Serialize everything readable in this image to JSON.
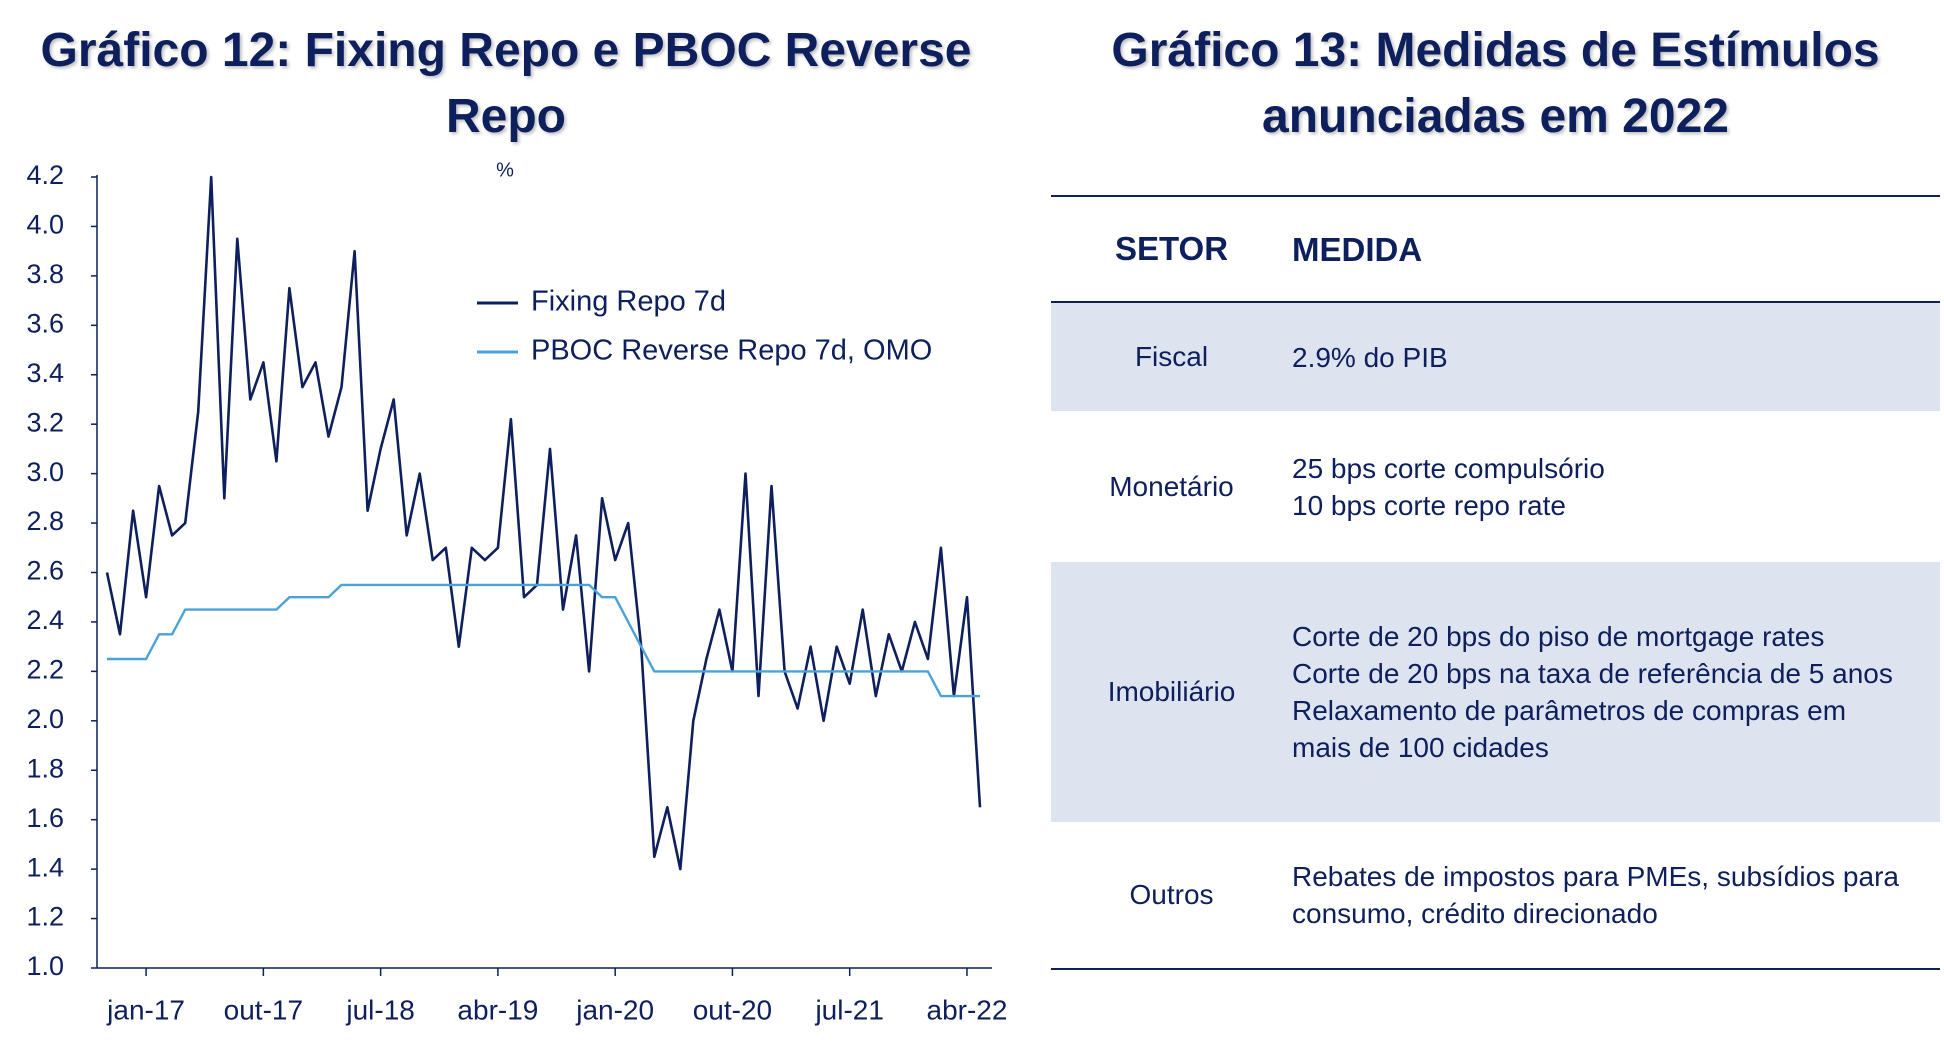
{
  "chart_data": {
    "type": "line",
    "title": "Gráfico 12: Fixing Repo e PBOC Reverse Repo",
    "subtitle": "%",
    "categories": [
      null,
      null,
      null,
      "jan-17",
      null,
      null,
      null,
      null,
      null,
      null,
      null,
      null,
      "out-17",
      null,
      null,
      null,
      null,
      null,
      null,
      null,
      null,
      "jul-18",
      null,
      null,
      null,
      null,
      null,
      null,
      null,
      null,
      "abr-19",
      null,
      null,
      null,
      null,
      null,
      null,
      null,
      null,
      "jan-20",
      null,
      null,
      null,
      null,
      null,
      null,
      null,
      null,
      "out-20",
      null,
      null,
      null,
      null,
      null,
      null,
      null,
      null,
      "jul-21",
      null,
      null,
      null,
      null,
      null,
      null,
      null,
      null,
      "abr-22",
      null
    ],
    "series": [
      {
        "name": "Fixing Repo 7d",
        "color": "#0d1f5c",
        "values": [
          2.6,
          2.35,
          2.85,
          2.5,
          2.95,
          2.75,
          2.8,
          3.25,
          4.2,
          2.9,
          3.95,
          3.3,
          3.45,
          3.05,
          3.75,
          3.35,
          3.45,
          3.15,
          3.35,
          3.9,
          2.85,
          3.1,
          3.3,
          2.75,
          3.0,
          2.65,
          2.7,
          2.3,
          2.7,
          2.65,
          2.7,
          3.22,
          2.5,
          2.55,
          3.1,
          2.45,
          2.75,
          2.2,
          2.9,
          2.65,
          2.8,
          2.3,
          1.45,
          1.65,
          1.4,
          2.0,
          2.25,
          2.45,
          2.2,
          3.0,
          2.1,
          2.95,
          2.2,
          2.05,
          2.3,
          2.0,
          2.3,
          2.15,
          2.45,
          2.1,
          2.35,
          2.2,
          2.4,
          2.25,
          2.7,
          2.1,
          2.5,
          1.65
        ]
      },
      {
        "name": "PBOC Reverse Repo 7d, OMO",
        "color": "#4aa3d4",
        "values": [
          2.25,
          2.25,
          2.25,
          2.25,
          2.35,
          2.35,
          2.45,
          2.45,
          2.45,
          2.45,
          2.45,
          2.45,
          2.45,
          2.45,
          2.5,
          2.5,
          2.5,
          2.5,
          2.55,
          2.55,
          2.55,
          2.55,
          2.55,
          2.55,
          2.55,
          2.55,
          2.55,
          2.55,
          2.55,
          2.55,
          2.55,
          2.55,
          2.55,
          2.55,
          2.55,
          2.55,
          2.55,
          2.55,
          2.5,
          2.5,
          2.4,
          2.3,
          2.2,
          2.2,
          2.2,
          2.2,
          2.2,
          2.2,
          2.2,
          2.2,
          2.2,
          2.2,
          2.2,
          2.2,
          2.2,
          2.2,
          2.2,
          2.2,
          2.2,
          2.2,
          2.2,
          2.2,
          2.2,
          2.2,
          2.1,
          2.1,
          2.1,
          2.1
        ]
      }
    ],
    "ylim": [
      1.0,
      4.2
    ],
    "yticks": [
      {
        "value": 1,
        "label": "1.0"
      },
      1.2,
      1.4,
      1.6,
      1.8,
      {
        "value": 2,
        "label": "2.0"
      },
      2.2,
      2.4,
      2.6,
      2.8,
      {
        "value": 3,
        "label": "3.0"
      },
      3.2,
      3.4,
      3.6,
      3.8,
      {
        "value": 4,
        "label": "4.0"
      },
      4.2
    ],
    "grid": false,
    "legend": "top-right"
  },
  "table": {
    "title": "Gráfico 13: Medidas de Estímulos anunciadas em 2022",
    "header": [
      "SETOR",
      "MEDIDA"
    ],
    "rows": [
      {
        "setor": "Fiscal",
        "medida": [
          "2.9% do PIB"
        ]
      },
      {
        "setor": "Monetário",
        "medida": [
          "25 bps corte compulsório",
          "10 bps corte repo rate"
        ]
      },
      {
        "setor": "Imobiliário",
        "medida": [
          "Corte de 20 bps do piso de mortgage rates",
          "Corte de 20 bps na taxa de referência de 5 anos",
          "Relaxamento de parâmetros de compras em mais de 100 cidades"
        ]
      },
      {
        "setor": "Outros",
        "medida": [
          "Rebates de impostos para PMEs, subsídios para consumo, crédito direcionado"
        ]
      }
    ]
  }
}
